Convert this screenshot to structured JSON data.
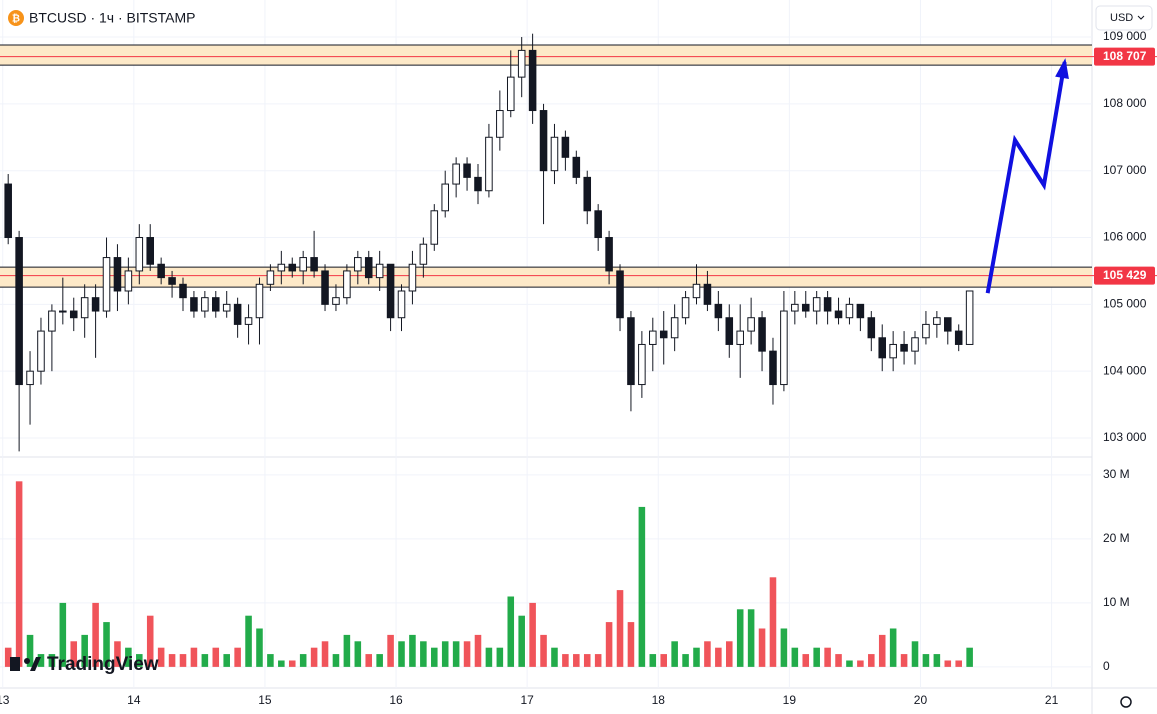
{
  "header": {
    "symbol": "BTCUSD · 1ч · BITSTAMP",
    "currency": "USD",
    "logo": "TradingView"
  },
  "chart_data": {
    "type": "candlestick",
    "x": [
      1,
      3,
      5,
      7,
      9,
      11,
      13,
      15,
      17,
      19,
      21,
      23,
      25,
      27,
      29,
      31,
      33,
      35,
      37,
      39,
      41,
      43,
      45,
      47,
      49,
      51,
      53,
      55,
      57,
      59,
      61,
      63,
      65,
      67,
      69,
      71,
      73,
      75,
      77,
      79,
      81,
      83,
      85,
      87,
      89,
      91,
      93,
      95,
      97,
      99,
      101,
      103,
      105,
      107,
      109,
      111,
      113,
      115,
      117,
      119,
      121,
      123,
      125,
      127,
      129,
      131,
      133,
      135,
      137,
      139,
      141,
      143,
      145,
      147,
      149,
      151,
      153,
      155,
      157,
      159,
      161,
      163,
      165,
      167,
      169,
      171,
      173,
      175,
      177
    ],
    "open": [
      106800,
      106000,
      103800,
      104000,
      104600,
      104900,
      104900,
      104800,
      105100,
      104900,
      105700,
      105200,
      105500,
      106000,
      105600,
      105400,
      105300,
      105100,
      104900,
      105100,
      104900,
      105000,
      104700,
      104800,
      105300,
      105500,
      105600,
      105500,
      105700,
      105500,
      105000,
      105100,
      105500,
      105700,
      105400,
      105600,
      104800,
      105200,
      105600,
      105900,
      106400,
      106800,
      107100,
      106900,
      106700,
      107500,
      107900,
      108400,
      108800,
      107900,
      107000,
      107500,
      107200,
      106900,
      106400,
      106000,
      105500,
      104800,
      103800,
      104400,
      104600,
      104500,
      104800,
      105100,
      105300,
      105000,
      104800,
      104400,
      104600,
      104800,
      104300,
      103800,
      104900,
      105000,
      104900,
      105100,
      104900,
      104800,
      105000,
      104800,
      104500,
      104200,
      104400,
      104300,
      104500,
      104700,
      104800,
      104600,
      104400
    ],
    "high": [
      106950,
      106100,
      104300,
      104800,
      105000,
      105400,
      105100,
      105300,
      105300,
      106000,
      105900,
      105700,
      106200,
      106200,
      105700,
      105500,
      105400,
      105200,
      105200,
      105200,
      105200,
      105100,
      105000,
      105400,
      105600,
      105800,
      105700,
      105800,
      106100,
      105600,
      105300,
      105600,
      105800,
      105800,
      105800,
      105600,
      105300,
      105800,
      106000,
      106500,
      107000,
      107200,
      107200,
      107100,
      107700,
      108200,
      108800,
      109000,
      109050,
      108000,
      107700,
      107600,
      107300,
      107000,
      106500,
      106100,
      105600,
      104900,
      104600,
      104800,
      104900,
      105000,
      105200,
      105600,
      105500,
      105200,
      105000,
      105000,
      105100,
      104900,
      104500,
      105200,
      105200,
      105200,
      105200,
      105200,
      105100,
      105100,
      105000,
      104900,
      104700,
      104600,
      104600,
      104600,
      104900,
      104900,
      104800,
      104700,
      105200
    ],
    "low": [
      105900,
      102800,
      103200,
      103800,
      104000,
      104700,
      104600,
      104500,
      104200,
      104800,
      104900,
      105000,
      105300,
      105500,
      105300,
      105100,
      104900,
      104800,
      104800,
      104800,
      104800,
      104500,
      104400,
      104400,
      105200,
      105300,
      105400,
      105300,
      105400,
      104900,
      104900,
      105000,
      105300,
      105300,
      105200,
      104600,
      104600,
      105000,
      105400,
      105800,
      106300,
      106600,
      106700,
      106500,
      106600,
      107300,
      107800,
      108100,
      107700,
      106200,
      106800,
      107000,
      106800,
      106200,
      105800,
      105300,
      104600,
      103400,
      103600,
      104000,
      104100,
      104300,
      104700,
      105000,
      104900,
      104600,
      104200,
      103900,
      104400,
      104000,
      103500,
      103700,
      104700,
      104800,
      104700,
      104700,
      104700,
      104700,
      104600,
      104300,
      104000,
      104000,
      104100,
      104100,
      104400,
      104500,
      104400,
      104300,
      104400
    ],
    "close": [
      106000,
      103800,
      104000,
      104600,
      104900,
      104900,
      104800,
      105100,
      104900,
      105700,
      105200,
      105500,
      106000,
      105600,
      105400,
      105300,
      105100,
      104900,
      105100,
      104900,
      105000,
      104700,
      104800,
      105300,
      105500,
      105600,
      105500,
      105700,
      105500,
      105000,
      105100,
      105500,
      105700,
      105400,
      105600,
      104800,
      105200,
      105600,
      105900,
      106400,
      106800,
      107100,
      106900,
      106700,
      107500,
      107900,
      108400,
      108800,
      107900,
      107000,
      107500,
      107200,
      106900,
      106400,
      106000,
      105500,
      104800,
      103800,
      104400,
      104600,
      104500,
      104800,
      105100,
      105300,
      105000,
      104800,
      104400,
      104600,
      104800,
      104300,
      103800,
      104900,
      105000,
      104900,
      105100,
      104900,
      104800,
      105000,
      104800,
      104500,
      104200,
      104400,
      104300,
      104500,
      104700,
      104800,
      104600,
      104400,
      105200
    ],
    "volume": [
      3,
      29,
      5,
      2,
      2,
      10,
      4,
      5,
      10,
      7,
      4,
      3,
      2,
      8,
      3,
      2,
      2,
      3,
      2,
      3,
      2,
      3,
      8,
      6,
      2,
      1,
      1,
      2,
      3,
      4,
      2,
      5,
      4,
      2,
      2,
      5,
      4,
      5,
      4,
      3,
      4,
      4,
      4,
      5,
      3,
      3,
      11,
      8,
      10,
      5,
      3,
      2,
      2,
      2,
      2,
      7,
      12,
      7,
      25,
      2,
      2,
      4,
      2,
      3,
      4,
      3,
      4,
      9,
      9,
      6,
      14,
      6,
      3,
      2,
      3,
      3,
      2,
      1,
      1,
      2,
      5,
      6,
      2,
      4,
      2,
      2,
      1,
      1,
      3
    ],
    "up_color": "#ffffff",
    "down_color": "#131722",
    "vol_up_color": "#22ab4a",
    "vol_down_color": "#f0545a",
    "xlim": [
      -0.5,
      199.4
    ],
    "xticks": [
      {
        "value": 0,
        "label": "13"
      },
      {
        "value": 24,
        "label": "14"
      },
      {
        "value": 48,
        "label": "15"
      },
      {
        "value": 72,
        "label": "16"
      },
      {
        "value": 96,
        "label": "17"
      },
      {
        "value": 120,
        "label": "18"
      },
      {
        "value": 144,
        "label": "19"
      },
      {
        "value": 168,
        "label": "20"
      },
      {
        "value": 192,
        "label": "21"
      }
    ],
    "ylim": [
      102716,
      109554
    ],
    "yticks": [
      {
        "value": 103000,
        "label": "103 000"
      },
      {
        "value": 104000,
        "label": "104 000"
      },
      {
        "value": 105000,
        "label": "105 000"
      },
      {
        "value": 106000,
        "label": "106 000"
      },
      {
        "value": 107000,
        "label": "107 000"
      },
      {
        "value": 108000,
        "label": "108 000"
      },
      {
        "value": 109000,
        "label": "109 000"
      }
    ],
    "vlim": [
      -3.3,
      32.8
    ],
    "vticks": [
      0,
      {
        "value": 10,
        "label": "10 M"
      },
      {
        "value": 20,
        "label": "20 M"
      },
      {
        "value": 30,
        "label": "30 M"
      }
    ],
    "zones": [
      {
        "from": 108580,
        "to": 108880
      },
      {
        "from": 105257,
        "to": 105557
      }
    ],
    "zone_color": "#fde9c8",
    "levels": [
      {
        "value": 108707,
        "label": "108 707"
      },
      {
        "value": 105429,
        "label": "105 429"
      }
    ],
    "level_color": "#f23645",
    "arrow": {
      "x": [
        180.3,
        185.3,
        190.6,
        194.4
      ],
      "y": [
        105168,
        107458,
        106784,
        108626
      ],
      "color": "#1010e0"
    },
    "grid": true
  }
}
